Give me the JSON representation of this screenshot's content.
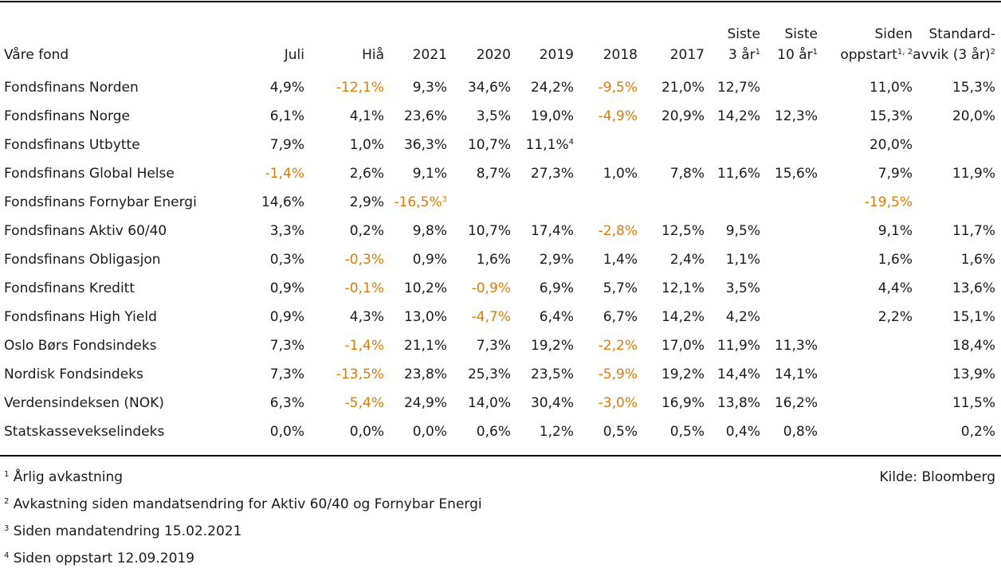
{
  "header": {
    "fund": "Våre fond",
    "juli": "Juli",
    "hia": "Hiå",
    "y2021": "2021",
    "y2020": "2020",
    "y2019": "2019",
    "y2018": "2018",
    "y2017": "2017",
    "siste3_l1": "Siste",
    "siste3_l2": "3 år",
    "siste3_sup": "1",
    "siste10_l1": "Siste",
    "siste10_l2": "10 år",
    "siste10_sup": "1",
    "siden_l1": "Siden",
    "siden_l2": "oppstart",
    "siden_sup": "1, 2",
    "std_l1": "Standard-",
    "std_l2": "avvik (3 år)",
    "std_sup": "2"
  },
  "rows": [
    {
      "name": "Fondsfinans Norden",
      "cells": [
        {
          "v": "4,9%"
        },
        {
          "v": "-12,1%",
          "neg": true
        },
        {
          "v": "9,3%"
        },
        {
          "v": "34,6%"
        },
        {
          "v": "24,2%"
        },
        {
          "v": "-9,5%",
          "neg": true
        },
        {
          "v": "21,0%"
        },
        {
          "v": "12,7%"
        },
        {
          "v": ""
        },
        {
          "v": "11,0%"
        },
        {
          "v": "15,3%"
        }
      ]
    },
    {
      "name": "Fondsfinans Norge",
      "cells": [
        {
          "v": "6,1%"
        },
        {
          "v": "4,1%"
        },
        {
          "v": "23,6%"
        },
        {
          "v": "3,5%"
        },
        {
          "v": "19,0%"
        },
        {
          "v": "-4,9%",
          "neg": true
        },
        {
          "v": "20,9%"
        },
        {
          "v": "14,2%"
        },
        {
          "v": "12,3%"
        },
        {
          "v": "15,3%"
        },
        {
          "v": "20,0%"
        }
      ]
    },
    {
      "name": "Fondsfinans Utbytte",
      "cells": [
        {
          "v": "7,9%"
        },
        {
          "v": "1,0%"
        },
        {
          "v": "36,3%"
        },
        {
          "v": "10,7%"
        },
        {
          "v": "11,1%",
          "sup": "4"
        },
        {
          "v": ""
        },
        {
          "v": ""
        },
        {
          "v": ""
        },
        {
          "v": ""
        },
        {
          "v": "20,0%"
        },
        {
          "v": ""
        }
      ]
    },
    {
      "name": "Fondsfinans Global Helse",
      "cells": [
        {
          "v": "-1,4%",
          "neg": true
        },
        {
          "v": "2,6%"
        },
        {
          "v": "9,1%"
        },
        {
          "v": "8,7%"
        },
        {
          "v": "27,3%"
        },
        {
          "v": "1,0%"
        },
        {
          "v": "7,8%"
        },
        {
          "v": "11,6%"
        },
        {
          "v": "15,6%"
        },
        {
          "v": "7,9%"
        },
        {
          "v": "11,9%"
        }
      ]
    },
    {
      "name": "Fondsfinans Fornybar Energi",
      "cells": [
        {
          "v": "14,6%"
        },
        {
          "v": "2,9%"
        },
        {
          "v": "-16,5%",
          "neg": true,
          "sup": "3"
        },
        {
          "v": ""
        },
        {
          "v": ""
        },
        {
          "v": ""
        },
        {
          "v": ""
        },
        {
          "v": ""
        },
        {
          "v": ""
        },
        {
          "v": "-19,5%",
          "neg": true
        },
        {
          "v": ""
        }
      ]
    },
    {
      "name": "Fondsfinans Aktiv 60/40",
      "cells": [
        {
          "v": "3,3%"
        },
        {
          "v": "0,2%"
        },
        {
          "v": "9,8%"
        },
        {
          "v": "10,7%"
        },
        {
          "v": "17,4%"
        },
        {
          "v": "-2,8%",
          "neg": true
        },
        {
          "v": "12,5%"
        },
        {
          "v": "9,5%"
        },
        {
          "v": ""
        },
        {
          "v": "9,1%"
        },
        {
          "v": "11,7%"
        }
      ]
    },
    {
      "name": "Fondsfinans Obligasjon",
      "cells": [
        {
          "v": "0,3%"
        },
        {
          "v": "-0,3%",
          "neg": true
        },
        {
          "v": "0,9%"
        },
        {
          "v": "1,6%"
        },
        {
          "v": "2,9%"
        },
        {
          "v": "1,4%"
        },
        {
          "v": "2,4%"
        },
        {
          "v": "1,1%"
        },
        {
          "v": ""
        },
        {
          "v": "1,6%"
        },
        {
          "v": "1,6%"
        }
      ]
    },
    {
      "name": "Fondsfinans Kreditt",
      "cells": [
        {
          "v": "0,9%"
        },
        {
          "v": "-0,1%",
          "neg": true
        },
        {
          "v": "10,2%"
        },
        {
          "v": "-0,9%",
          "neg": true
        },
        {
          "v": "6,9%"
        },
        {
          "v": "5,7%"
        },
        {
          "v": "12,1%"
        },
        {
          "v": "3,5%"
        },
        {
          "v": ""
        },
        {
          "v": "4,4%"
        },
        {
          "v": "13,6%"
        }
      ]
    },
    {
      "name": "Fondsfinans High Yield",
      "cells": [
        {
          "v": "0,9%"
        },
        {
          "v": "4,3%"
        },
        {
          "v": "13,0%"
        },
        {
          "v": "-4,7%",
          "neg": true
        },
        {
          "v": "6,4%"
        },
        {
          "v": "6,7%"
        },
        {
          "v": "14,2%"
        },
        {
          "v": "4,2%"
        },
        {
          "v": ""
        },
        {
          "v": "2,2%"
        },
        {
          "v": "15,1%"
        }
      ]
    },
    {
      "name": "Oslo Børs Fondsindeks",
      "cells": [
        {
          "v": "7,3%"
        },
        {
          "v": "-1,4%",
          "neg": true
        },
        {
          "v": "21,1%"
        },
        {
          "v": "7,3%"
        },
        {
          "v": "19,2%"
        },
        {
          "v": "-2,2%",
          "neg": true
        },
        {
          "v": "17,0%"
        },
        {
          "v": "11,9%"
        },
        {
          "v": "11,3%"
        },
        {
          "v": ""
        },
        {
          "v": "18,4%"
        }
      ]
    },
    {
      "name": "Nordisk Fondsindeks",
      "cells": [
        {
          "v": "7,3%"
        },
        {
          "v": "-13,5%",
          "neg": true
        },
        {
          "v": "23,8%"
        },
        {
          "v": "25,3%"
        },
        {
          "v": "23,5%"
        },
        {
          "v": "-5,9%",
          "neg": true
        },
        {
          "v": "19,2%"
        },
        {
          "v": "14,4%"
        },
        {
          "v": "14,1%"
        },
        {
          "v": ""
        },
        {
          "v": "13,9%"
        }
      ]
    },
    {
      "name": "Verdensindeksen (NOK)",
      "cells": [
        {
          "v": "6,3%"
        },
        {
          "v": "-5,4%",
          "neg": true
        },
        {
          "v": "24,9%"
        },
        {
          "v": "14,0%"
        },
        {
          "v": "30,4%"
        },
        {
          "v": "-3,0%",
          "neg": true
        },
        {
          "v": "16,9%"
        },
        {
          "v": "13,8%"
        },
        {
          "v": "16,2%"
        },
        {
          "v": ""
        },
        {
          "v": "11,5%"
        }
      ]
    },
    {
      "name": "Statskasseveksel­indeks",
      "cells": [
        {
          "v": "0,0%"
        },
        {
          "v": "0,0%"
        },
        {
          "v": "0,0%"
        },
        {
          "v": "0,6%"
        },
        {
          "v": "1,2%"
        },
        {
          "v": "0,5%"
        },
        {
          "v": "0,5%"
        },
        {
          "v": "0,4%"
        },
        {
          "v": "0,8%"
        },
        {
          "v": ""
        },
        {
          "v": "0,2%"
        }
      ]
    }
  ],
  "footnotes": [
    {
      "num": "1",
      "text": "Årlig avkastning"
    },
    {
      "num": "2",
      "text": "Avkastning siden mandatsendring for Aktiv 60/40 og Fornybar Energi"
    },
    {
      "num": "3",
      "text": "Siden mandatendring 15.02.2021"
    },
    {
      "num": "4",
      "text": "Siden oppstart 12.09.2019"
    }
  ],
  "source": "Kilde: Bloomberg",
  "colors": {
    "negative": "#e07b00",
    "text": "#1a1a1a",
    "rule": "#000000"
  }
}
